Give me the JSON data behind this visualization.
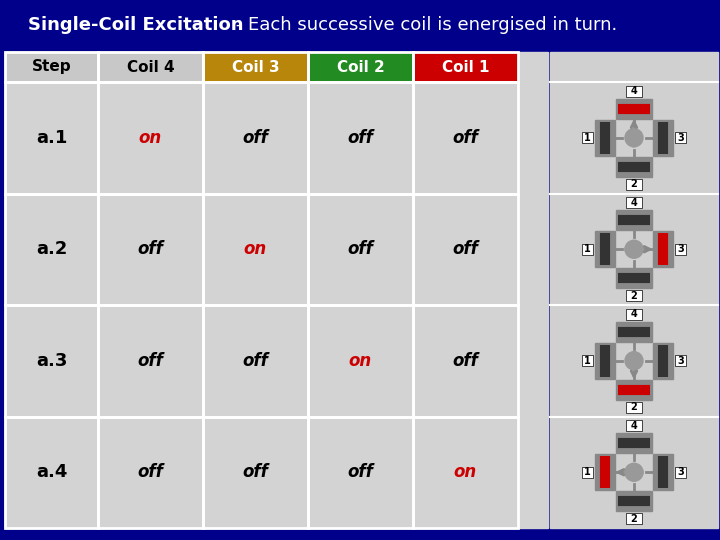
{
  "title_bold": "Single-Coil Excitation",
  "title_normal": " - Each successive coil is energised in turn.",
  "title_bg": "#00008B",
  "header_row": [
    "Step",
    "Coil 4",
    "Coil 3",
    "Coil 2",
    "Coil 1"
  ],
  "header_colors": [
    "#c8c8c8",
    "#c8c8c8",
    "#b8860b",
    "#228B22",
    "#cc0000"
  ],
  "header_text_colors": [
    "black",
    "black",
    "white",
    "white",
    "white"
  ],
  "rows": [
    {
      "step": "a.1",
      "values": [
        "on",
        "off",
        "off",
        "off"
      ],
      "on_col": 0
    },
    {
      "step": "a.2",
      "values": [
        "off",
        "on",
        "off",
        "off"
      ],
      "on_col": 1
    },
    {
      "step": "a.3",
      "values": [
        "off",
        "off",
        "on",
        "off"
      ],
      "on_col": 2
    },
    {
      "step": "a.4",
      "values": [
        "off",
        "off",
        "off",
        "on"
      ],
      "on_col": 3
    }
  ],
  "cell_bg": "#d3d3d3",
  "on_color": "#cc0000",
  "off_color": "black",
  "grid_color": "white",
  "diag_bg": "#d0d0d0",
  "coil_inactive": "#333333",
  "coil_active": "#cc0000",
  "coil_plate": "#888888",
  "rotor_color": "#999999",
  "arrow_color": "#888888",
  "label_bg": "#d0d0d0"
}
